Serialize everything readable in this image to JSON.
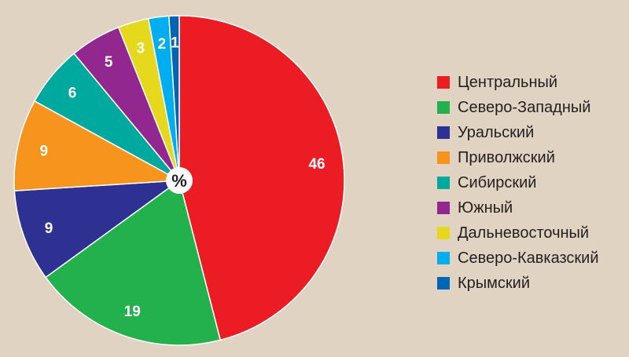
{
  "chart_data": {
    "type": "pie",
    "center_label": "%",
    "start_angle_deg": 0,
    "direction": "clockwise",
    "slices": [
      {
        "label": "Центральный",
        "value": 46,
        "color": "#ec1c24"
      },
      {
        "label": "Северо-Западный",
        "value": 19,
        "color": "#22b14c"
      },
      {
        "label": "Уральский",
        "value": 9,
        "color": "#2e3192"
      },
      {
        "label": "Приволжский",
        "value": 9,
        "color": "#f7941d"
      },
      {
        "label": "Сибирский",
        "value": 6,
        "color": "#00a99d"
      },
      {
        "label": "Южный",
        "value": 5,
        "color": "#92278f"
      },
      {
        "label": "Дальневосточный",
        "value": 3,
        "color": "#e6d81c"
      },
      {
        "label": "Северо-Кавказский",
        "value": 2,
        "color": "#00aeef"
      },
      {
        "label": "Крымский",
        "value": 1,
        "color": "#0066b3"
      }
    ],
    "legend_placement": "right"
  }
}
